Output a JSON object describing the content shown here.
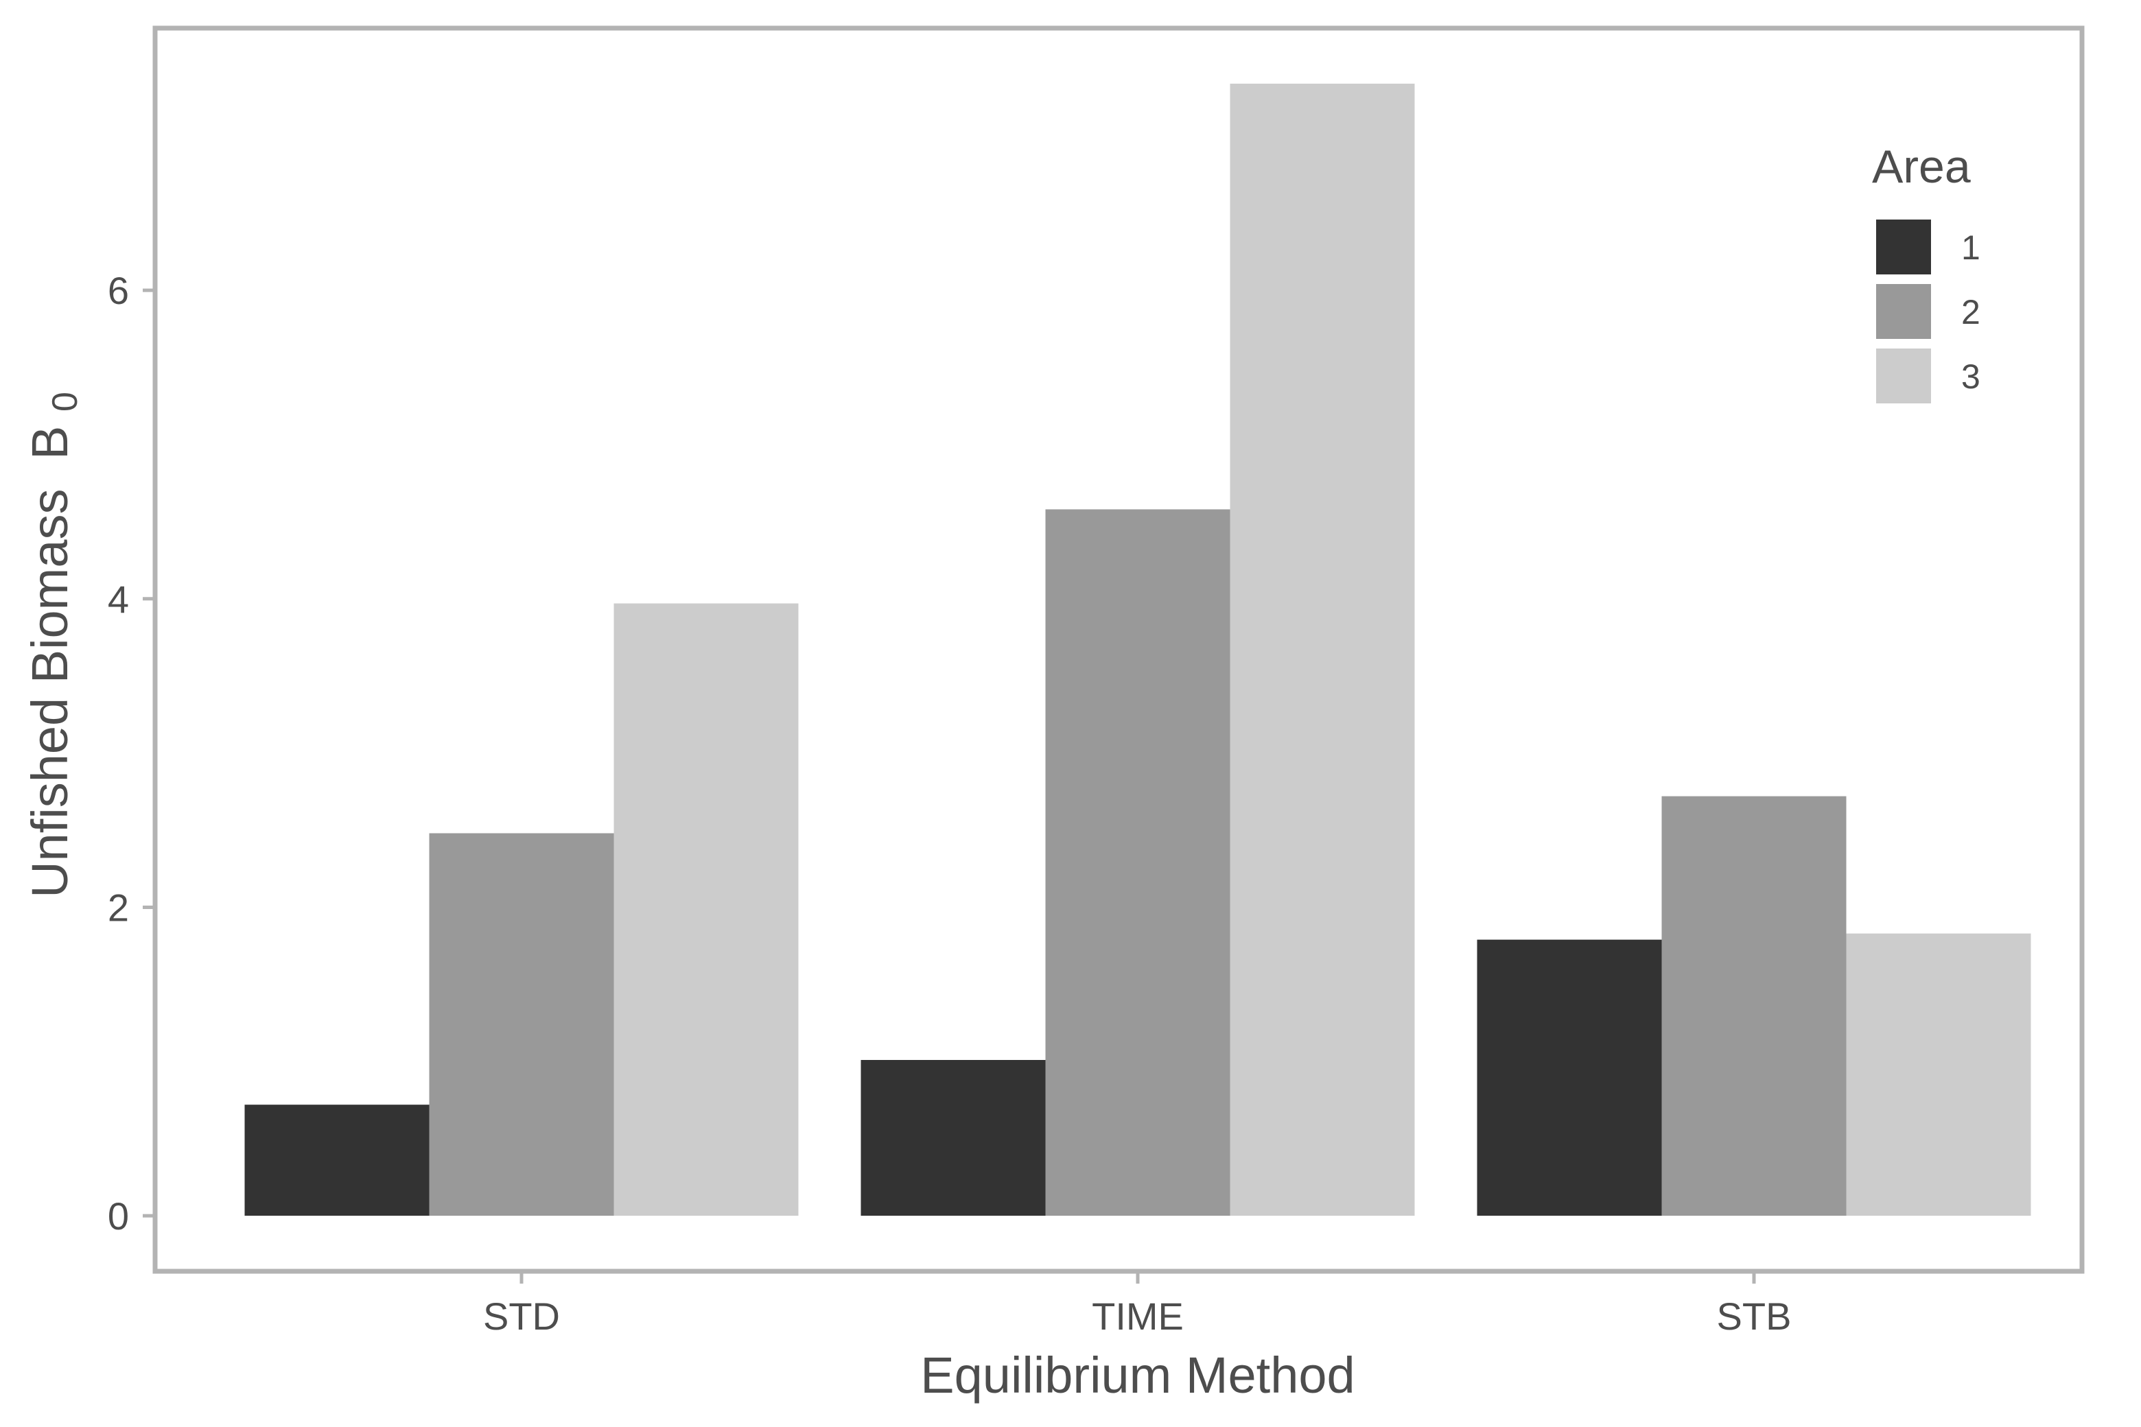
{
  "chart_data": {
    "type": "bar",
    "xlabel": "Equilibrium Method",
    "ylabel": "Unfished Biomass",
    "ylabel_symbol": "B",
    "ylabel_subscript": "0",
    "categories": [
      "STD",
      "TIME",
      "STB"
    ],
    "series": [
      {
        "name": "1",
        "values": [
          0.72,
          1.01,
          1.79
        ],
        "color": "#333333"
      },
      {
        "name": "2",
        "values": [
          2.48,
          4.58,
          2.72
        ],
        "color": "#999999"
      },
      {
        "name": "3",
        "values": [
          3.97,
          7.34,
          1.83
        ],
        "color": "#cccccc"
      }
    ],
    "legend_title": "Area",
    "legend_position": "top-right",
    "yticks": [
      0,
      2,
      4,
      6
    ],
    "ylim": [
      -0.36,
      7.7
    ],
    "grid": false,
    "panel_border_color": "#b3b3b3",
    "text_color": "#4d4d4d",
    "background": "#ffffff"
  }
}
